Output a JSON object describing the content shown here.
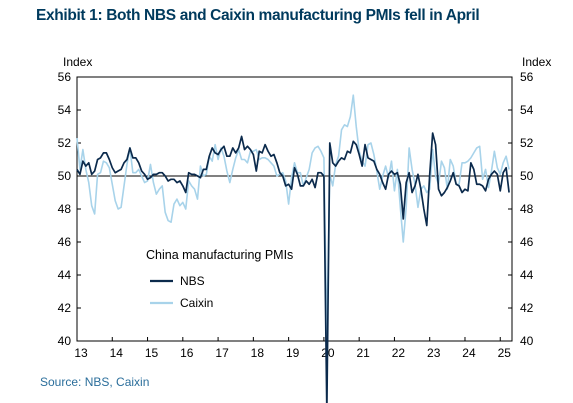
{
  "title": "Exhibit 1: Both NBS and Caixin manufacturing PMIs fell in April",
  "source": "Source: NBS, Caixin",
  "colors": {
    "nbs": "#0b2a4c",
    "caixin": "#a8d3ea",
    "title": "#003a5d",
    "source": "#2b6e9b"
  },
  "chart_data": {
    "type": "line",
    "title": "Exhibit 1: Both NBS and Caixin manufacturing PMIs fell in April",
    "ylabel_left": "Index",
    "ylabel_right": "Index",
    "xlabel": "",
    "ylim": [
      40,
      56
    ],
    "yticks": [
      40,
      42,
      44,
      46,
      48,
      50,
      52,
      54,
      56
    ],
    "xlim": [
      2013.0,
      2025.333
    ],
    "xticks": [
      "13",
      "14",
      "15",
      "16",
      "17",
      "18",
      "19",
      "20",
      "21",
      "22",
      "23",
      "24",
      "25"
    ],
    "reference_line": 50,
    "grid": false,
    "legend_title": "China manufacturing PMIs",
    "legend_position": "center-left",
    "x_unit": "year (fractional, monthly data Jan 2013 - Apr 2025)",
    "series": [
      {
        "name": "NBS",
        "color": "#0b2a4c",
        "values": [
          50.4,
          50.1,
          50.9,
          50.6,
          50.8,
          50.1,
          50.3,
          51.0,
          51.1,
          51.4,
          51.4,
          51.0,
          50.5,
          50.2,
          50.3,
          50.4,
          50.8,
          51.0,
          51.7,
          51.1,
          51.1,
          50.8,
          50.3,
          50.1,
          49.8,
          49.9,
          50.1,
          50.1,
          50.2,
          50.2,
          50.0,
          49.7,
          49.8,
          49.8,
          49.6,
          49.7,
          49.4,
          49.0,
          50.2,
          50.1,
          50.1,
          50.0,
          49.9,
          50.4,
          50.4,
          51.2,
          51.7,
          51.4,
          51.3,
          51.6,
          51.8,
          51.2,
          51.2,
          51.7,
          51.4,
          51.7,
          52.4,
          51.6,
          51.8,
          51.6,
          51.3,
          50.3,
          51.5,
          51.4,
          51.9,
          51.5,
          51.2,
          51.3,
          50.8,
          50.2,
          50.0,
          49.4,
          49.5,
          49.2,
          50.5,
          50.1,
          49.4,
          49.4,
          49.7,
          49.5,
          49.8,
          49.3,
          50.2,
          50.2,
          50.0,
          35.7,
          52.0,
          50.8,
          50.6,
          50.9,
          51.1,
          51.0,
          51.5,
          51.4,
          52.1,
          51.9,
          51.3,
          50.6,
          51.9,
          51.1,
          51.0,
          50.9,
          50.4,
          50.1,
          49.6,
          49.2,
          50.1,
          50.3,
          50.1,
          50.2,
          49.5,
          47.4,
          49.6,
          50.2,
          49.0,
          49.4,
          50.1,
          49.2,
          48.0,
          47.0,
          50.1,
          52.6,
          51.9,
          49.2,
          48.8,
          49.0,
          49.3,
          49.7,
          50.2,
          49.5,
          49.4,
          49.0,
          49.2,
          49.1,
          50.8,
          50.4,
          49.5,
          49.5,
          49.4,
          49.1,
          49.8,
          50.1,
          50.3,
          50.1,
          49.1,
          50.2,
          50.5,
          49.0
        ]
      },
      {
        "name": "Caixin",
        "color": "#a8d3ea",
        "values": [
          52.3,
          50.4,
          51.6,
          50.4,
          49.6,
          48.2,
          47.7,
          50.1,
          50.2,
          50.9,
          50.8,
          50.5,
          49.5,
          48.5,
          48.0,
          48.1,
          49.4,
          50.7,
          51.7,
          50.2,
          50.2,
          50.4,
          50.0,
          49.6,
          49.7,
          50.7,
          49.6,
          48.9,
          49.2,
          49.4,
          47.8,
          47.3,
          47.2,
          48.3,
          48.6,
          48.2,
          48.4,
          48.0,
          49.7,
          49.4,
          49.2,
          48.6,
          50.6,
          50.0,
          50.1,
          51.2,
          50.9,
          51.9,
          51.0,
          51.7,
          51.2,
          50.3,
          49.6,
          50.4,
          51.1,
          51.6,
          51.0,
          51.0,
          50.8,
          51.5,
          51.5,
          51.6,
          51.0,
          51.1,
          51.1,
          51.0,
          50.8,
          50.6,
          50.0,
          50.1,
          50.2,
          49.7,
          48.3,
          49.9,
          50.8,
          50.2,
          50.2,
          49.4,
          49.9,
          50.4,
          51.4,
          51.7,
          51.8,
          51.5,
          51.1,
          40.3,
          50.1,
          49.4,
          50.7,
          51.2,
          52.8,
          53.1,
          53.0,
          53.6,
          54.9,
          53.0,
          51.5,
          50.9,
          50.6,
          51.9,
          52.0,
          51.3,
          50.3,
          49.2,
          50.0,
          50.6,
          49.9,
          50.9,
          49.1,
          50.4,
          48.1,
          46.0,
          48.1,
          51.7,
          50.4,
          49.5,
          48.1,
          49.2,
          49.4,
          49.0,
          49.2,
          51.6,
          50.0,
          49.5,
          50.9,
          50.5,
          49.2,
          51.0,
          50.6,
          49.5,
          49.5,
          50.8,
          50.8,
          50.9,
          51.1,
          51.4,
          51.7,
          51.8,
          49.8,
          50.4,
          49.3,
          50.3,
          51.5,
          50.5,
          50.1,
          50.8,
          51.2,
          50.4
        ]
      }
    ]
  }
}
